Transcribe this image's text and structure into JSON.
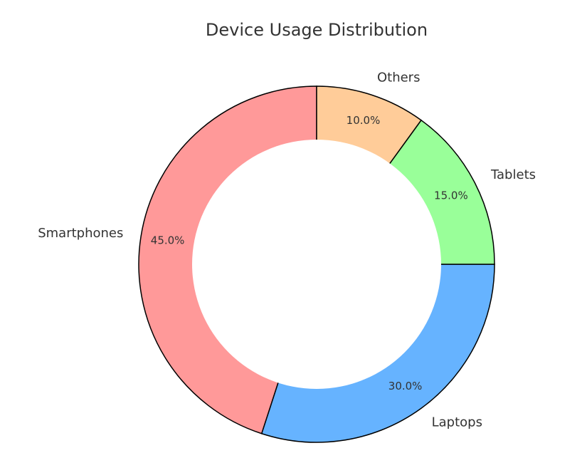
{
  "chart_data": {
    "type": "pie",
    "donut": true,
    "title": "Device Usage Distribution",
    "start_angle_deg": 90,
    "direction": "counterclockwise",
    "slices": [
      {
        "label": "Smartphones",
        "value": 45.0,
        "pct_text": "45.0%",
        "color": "#ff9999"
      },
      {
        "label": "Laptops",
        "value": 30.0,
        "pct_text": "30.0%",
        "color": "#66b3ff"
      },
      {
        "label": "Tablets",
        "value": 15.0,
        "pct_text": "15.0%",
        "color": "#99ff99"
      },
      {
        "label": "Others",
        "value": 10.0,
        "pct_text": "10.0%",
        "color": "#ffcc99"
      }
    ],
    "legend": false
  }
}
